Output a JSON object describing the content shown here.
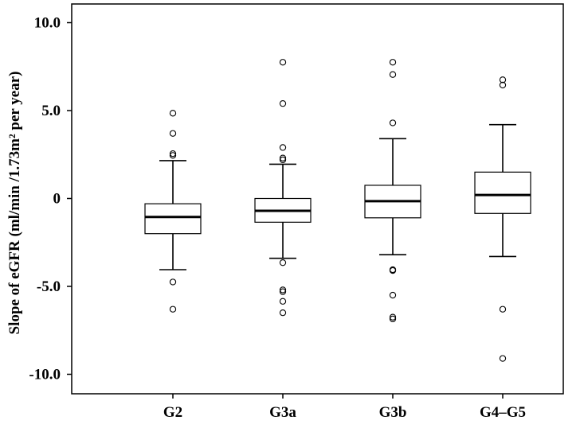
{
  "chart_data": {
    "type": "box",
    "title": "",
    "xlabel": "",
    "ylabel": "Slope of eGFR (ml/min /1.73m² per year)",
    "ylim": [
      -11.0,
      10.6
    ],
    "yticks": [
      {
        "value": 10,
        "label": "10.0"
      },
      {
        "value": 5,
        "label": "5.0"
      },
      {
        "value": 0,
        "label": "0"
      },
      {
        "value": -5,
        "label": "-5.0"
      },
      {
        "value": -10,
        "label": "-10.0"
      }
    ],
    "categories": [
      "G2",
      "G3a",
      "G3b",
      "G4–G5"
    ],
    "boxes": [
      {
        "name": "G2",
        "whisker_low": -4.05,
        "q1": -2.0,
        "median": -1.05,
        "q3": -0.3,
        "whisker_high": 2.15,
        "outliers": [
          4.85,
          3.7,
          2.55,
          2.45,
          -4.75,
          -6.3
        ]
      },
      {
        "name": "G3a",
        "whisker_low": -3.4,
        "q1": -1.35,
        "median": -0.7,
        "q3": 0.0,
        "whisker_high": 1.95,
        "outliers": [
          7.75,
          5.4,
          2.9,
          2.3,
          2.2,
          -3.65,
          -5.2,
          -5.3,
          -5.85,
          -6.5
        ]
      },
      {
        "name": "G3b",
        "whisker_low": -3.2,
        "q1": -1.1,
        "median": -0.15,
        "q3": 0.75,
        "whisker_high": 3.4,
        "outliers": [
          7.75,
          7.05,
          4.3,
          -4.05,
          -4.1,
          -5.5,
          -6.75,
          -6.85
        ]
      },
      {
        "name": "G4–G5",
        "whisker_low": -3.3,
        "q1": -0.85,
        "median": 0.2,
        "q3": 1.5,
        "whisker_high": 4.2,
        "outliers": [
          6.75,
          6.45,
          -6.3,
          -9.1
        ]
      }
    ],
    "grid": false,
    "legend": "none"
  }
}
